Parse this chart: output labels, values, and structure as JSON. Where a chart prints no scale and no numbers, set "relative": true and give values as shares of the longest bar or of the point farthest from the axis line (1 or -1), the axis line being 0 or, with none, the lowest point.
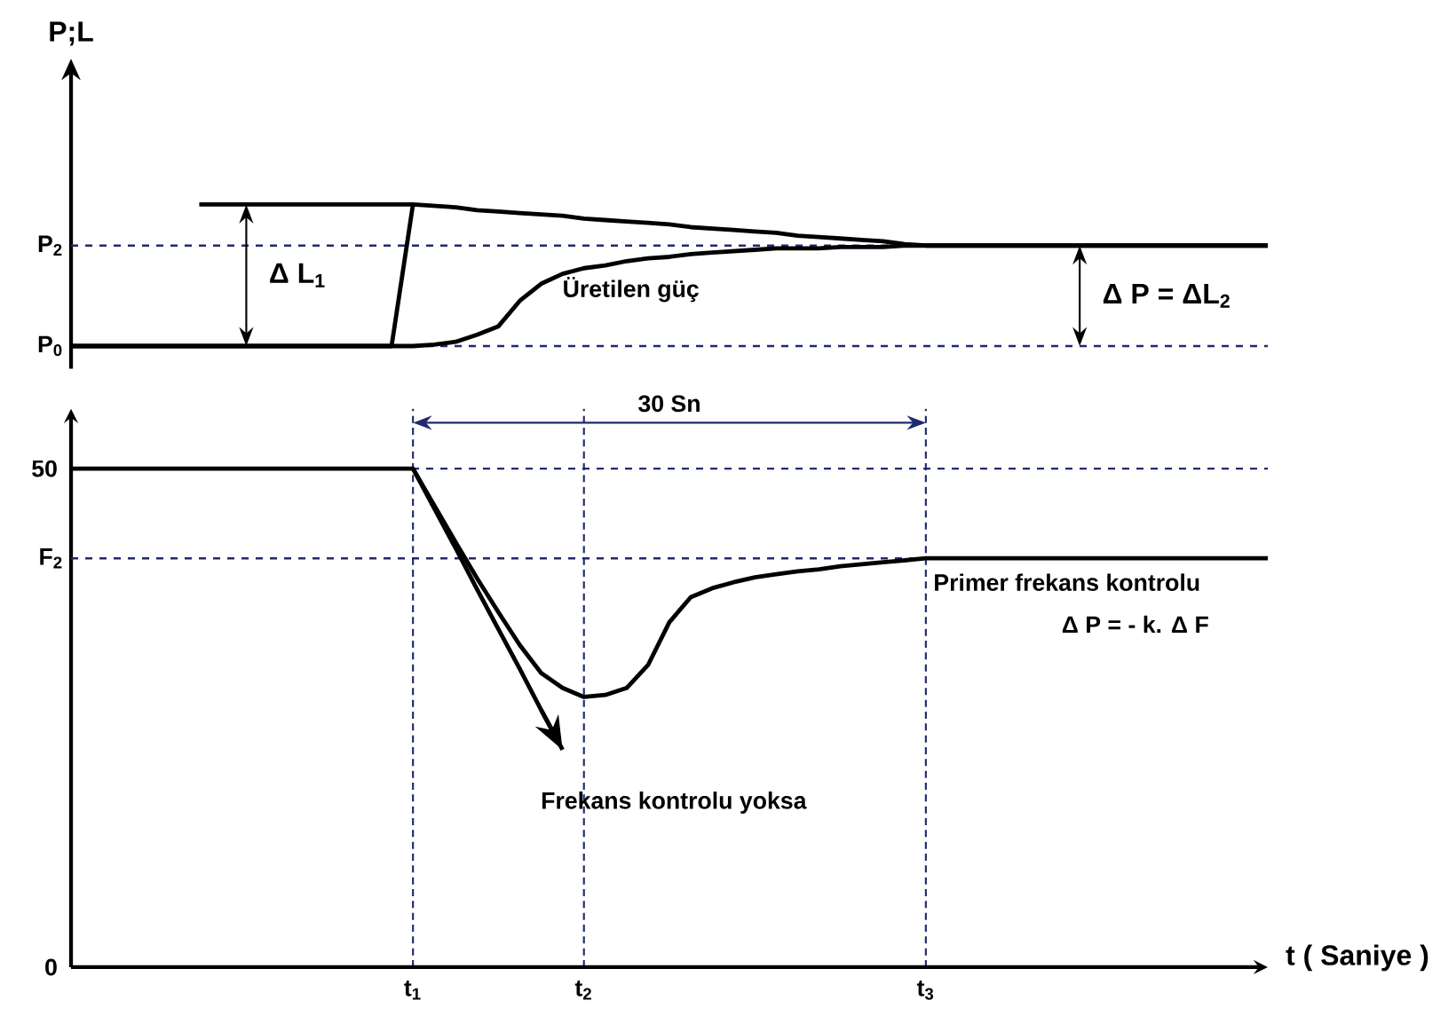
{
  "chart_data": [
    {
      "type": "line",
      "ylabel": "P;L",
      "relative": true,
      "categories": [
        null,
        null,
        null,
        null,
        null,
        null,
        null,
        null,
        null,
        null,
        null,
        null,
        null,
        null,
        null,
        null,
        null,
        null,
        null,
        null,
        null,
        null,
        null,
        null,
        null,
        null,
        null,
        null,
        null,
        null,
        null,
        null,
        null,
        null,
        null,
        null,
        null,
        null,
        null,
        null,
        null,
        null,
        null,
        null,
        null,
        null,
        null,
        null,
        null,
        null,
        null,
        null,
        null,
        null,
        null,
        null,
        null
      ],
      "series": [
        {
          "color": "#000000",
          "values": [
            0,
            0,
            0,
            0,
            0,
            0,
            0,
            0,
            0,
            0,
            0,
            0,
            0,
            0,
            0,
            0,
            1,
            0.99,
            0.98,
            0.96,
            0.95,
            0.94,
            0.93,
            0.92,
            0.9,
            0.89,
            0.88,
            0.87,
            0.86,
            0.84,
            0.83,
            0.82,
            0.81,
            0.8,
            0.78,
            0.77,
            0.76,
            0.75,
            0.74,
            0.72,
            0.71,
            0.71,
            0.71,
            0.71,
            0.71,
            0.71,
            0.71,
            0.71,
            0.71,
            0.71,
            0.71,
            0.71,
            0.71,
            0.71,
            0.71,
            0.71,
            0.71
          ]
        },
        {
          "color": "#000000",
          "values": [
            0,
            0,
            0,
            0,
            0,
            0,
            0,
            0,
            0,
            0,
            0,
            0,
            0,
            0,
            0,
            0,
            0,
            0.01,
            0.03,
            0.08,
            0.14,
            0.32,
            0.44,
            0.51,
            0.55,
            0.57,
            0.6,
            0.62,
            0.63,
            0.65,
            0.66,
            0.67,
            0.68,
            0.69,
            0.69,
            0.69,
            0.7,
            0.7,
            0.7,
            0.71,
            0.71,
            0.71,
            0.71,
            0.71,
            0.71,
            0.71,
            0.71,
            0.71,
            0.71,
            0.71,
            0.71,
            0.71,
            0.71,
            0.71,
            0.71,
            0.71,
            0.71
          ]
        },
        {
          "color": "#000000",
          "values": [
            null,
            null,
            null,
            null,
            null,
            null,
            1,
            1,
            1,
            1,
            1,
            1,
            1,
            1,
            1,
            1,
            1,
            null,
            null,
            null,
            null,
            null,
            null,
            null,
            null,
            null,
            null,
            null,
            null,
            null,
            null,
            null,
            null,
            null,
            null,
            null,
            null,
            null,
            null,
            null,
            null,
            null,
            null,
            null,
            null,
            null,
            null,
            null,
            null,
            null,
            null,
            null,
            null,
            null,
            null,
            null,
            null
          ]
        }
      ],
      "ref_lines": [
        {
          "axis": "y",
          "value": 0.71,
          "label": "P$_{2}$",
          "color": "#1f2a6e",
          "line_style": "dashed"
        },
        {
          "axis": "y",
          "value": 0,
          "label": "P$_{0}$",
          "color": "#1f2a6e",
          "line_style": "dashed"
        }
      ],
      "annotations": [
        "Δ L$_{1}$",
        "Üretilen güç",
        "Δ P = ΔL$_{2}$"
      ]
    },
    {
      "type": "line",
      "xlabel": "t ( Saniye )",
      "ylim": [
        0,
        56
      ],
      "grid": "x",
      "categories": [
        null,
        null,
        null,
        null,
        null,
        null,
        null,
        null,
        null,
        null,
        null,
        null,
        null,
        null,
        null,
        null,
        "t$_{1}$",
        null,
        null,
        null,
        null,
        null,
        null,
        null,
        "t$_{2}$",
        null,
        null,
        null,
        null,
        null,
        null,
        null,
        null,
        null,
        null,
        null,
        null,
        null,
        null,
        null,
        "t$_{3}$",
        null,
        null,
        null,
        null,
        null,
        null,
        null,
        null,
        null,
        null,
        null,
        null,
        null,
        null,
        null,
        null
      ],
      "yticks": [
        0,
        50
      ],
      "series": [
        {
          "color": "#000000",
          "values": [
            50,
            50,
            50,
            50,
            50,
            50,
            50,
            50,
            50,
            50,
            50,
            50,
            50,
            50,
            50,
            50,
            50,
            46.3,
            42.6,
            39.0,
            35.6,
            32.3,
            29.5,
            28.0,
            27.1,
            27.3,
            28.0,
            30.3,
            34.6,
            37.1,
            38.0,
            38.6,
            39.1,
            39.4,
            39.7,
            39.9,
            40.2,
            40.4,
            40.6,
            40.8,
            41,
            41,
            41,
            41,
            41,
            41,
            41,
            41,
            41,
            41,
            41,
            41,
            41,
            41,
            41,
            41,
            41
          ]
        },
        {
          "color": "#000000",
          "values": [
            null,
            null,
            null,
            null,
            null,
            null,
            null,
            null,
            null,
            null,
            null,
            null,
            null,
            null,
            null,
            null,
            50,
            46.0,
            42.0,
            37.9,
            33.9,
            29.9,
            25.8,
            21.8,
            null,
            null,
            null,
            null,
            null,
            null,
            null,
            null,
            null,
            null,
            null,
            null,
            null,
            null,
            null,
            null,
            null,
            null,
            null,
            null,
            null,
            null,
            null,
            null,
            null,
            null,
            null,
            null,
            null,
            null,
            null,
            null,
            null
          ]
        }
      ],
      "ref_lines": [
        {
          "axis": "y",
          "value": 50,
          "color": "#1f2a6e",
          "line_style": "dashed"
        },
        {
          "axis": "y",
          "value": 41,
          "label": "F$_{2}$",
          "color": "#1f2a6e",
          "line_style": "dashed"
        }
      ],
      "annotations": [
        "30 Sn",
        "Frekans kontrolu yoksa",
        "Primer frekans kontrolu",
        "Δ P = - k. Δ F"
      ]
    }
  ]
}
